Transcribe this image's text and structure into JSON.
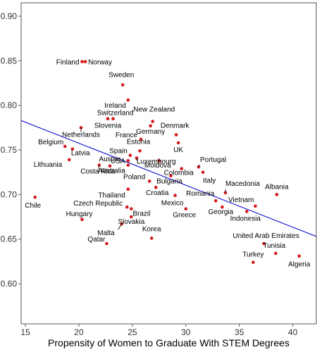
{
  "chart_data": {
    "type": "scatter",
    "title": "",
    "xlabel": "Propensity of Women to Graduate With STEM Degrees",
    "ylabel": "",
    "xlim": [
      14.6,
      42.2
    ],
    "ylim": [
      0.555,
      0.915
    ],
    "xticks": [
      15,
      20,
      25,
      30,
      35,
      40
    ],
    "yticks": [
      0.6,
      0.65,
      0.7,
      0.75,
      0.8,
      0.85,
      0.9
    ],
    "xtick_labels": [
      "15",
      "20",
      "25",
      "30",
      "35",
      "40"
    ],
    "ytick_labels": [
      "0.60",
      "0.65",
      "0.70",
      "0.75",
      "0.80",
      "0.85",
      "0.90"
    ],
    "grid": false,
    "point_color": "#d7191c",
    "trend_color": "#1f1fd6",
    "trend_line": {
      "x": [
        14.6,
        42.2
      ],
      "y": [
        0.783,
        0.653
      ]
    },
    "points": [
      {
        "name": "Finland",
        "x": 20.3,
        "y": 0.849
      },
      {
        "name": "Norway",
        "x": 20.6,
        "y": 0.849
      },
      {
        "name": "Sweden",
        "x": 24.1,
        "y": 0.823
      },
      {
        "name": "Ireland",
        "x": 24.6,
        "y": 0.806
      },
      {
        "name": "Switzerland",
        "x": 23.2,
        "y": 0.785
      },
      {
        "name": "Slovenia",
        "x": 22.7,
        "y": 0.785
      },
      {
        "name": "New Zealand",
        "x": 26.9,
        "y": 0.782
      },
      {
        "name": "Germany",
        "x": 26.7,
        "y": 0.777
      },
      {
        "name": "Netherlands",
        "x": 20.2,
        "y": 0.775
      },
      {
        "name": "Denmark",
        "x": 29.1,
        "y": 0.767
      },
      {
        "name": "France",
        "x": 25.8,
        "y": 0.762
      },
      {
        "name": "UK",
        "x": 29.3,
        "y": 0.758
      },
      {
        "name": "Belgium",
        "x": 18.7,
        "y": 0.754
      },
      {
        "name": "Latvia",
        "x": 19.4,
        "y": 0.751
      },
      {
        "name": "Estonia",
        "x": 25.7,
        "y": 0.749
      },
      {
        "name": "Spain",
        "x": 24.8,
        "y": 0.744
      },
      {
        "name": "Luxembourg",
        "x": 25.4,
        "y": 0.741
      },
      {
        "name": "USA",
        "x": 24.6,
        "y": 0.738
      },
      {
        "name": "Lithuania",
        "x": 19.1,
        "y": 0.739
      },
      {
        "name": "Austria",
        "x": 22.9,
        "y": 0.732
      },
      {
        "name": "Moldova",
        "x": 27.5,
        "y": 0.738
      },
      {
        "name": "Portugal",
        "x": 31.2,
        "y": 0.731
      },
      {
        "name": "Costa Rica",
        "x": 21.9,
        "y": 0.733
      },
      {
        "name": "Australia",
        "x": 24.6,
        "y": 0.733
      },
      {
        "name": "Colombia",
        "x": 29.6,
        "y": 0.729
      },
      {
        "name": "Italy",
        "x": 31.6,
        "y": 0.725
      },
      {
        "name": "Poland",
        "x": 26.6,
        "y": 0.715
      },
      {
        "name": "Bulgaria",
        "x": 28.6,
        "y": 0.721
      },
      {
        "name": "Thailand",
        "x": 24.6,
        "y": 0.706
      },
      {
        "name": "Croatia",
        "x": 27.2,
        "y": 0.708
      },
      {
        "name": "Macedonia",
        "x": 33.7,
        "y": 0.702
      },
      {
        "name": "Albania",
        "x": 38.5,
        "y": 0.7
      },
      {
        "name": "Chile",
        "x": 15.9,
        "y": 0.697
      },
      {
        "name": "Mexico",
        "x": 29.0,
        "y": 0.699
      },
      {
        "name": "Romania",
        "x": 32.8,
        "y": 0.693
      },
      {
        "name": "Czech Republic",
        "x": 24.5,
        "y": 0.686
      },
      {
        "name": "Vietnam",
        "x": 36.5,
        "y": 0.687
      },
      {
        "name": "Brazil",
        "x": 24.9,
        "y": 0.684
      },
      {
        "name": "Greece",
        "x": 30.0,
        "y": 0.684
      },
      {
        "name": "Georgia",
        "x": 33.4,
        "y": 0.686
      },
      {
        "name": "Indonesia",
        "x": 35.7,
        "y": 0.681
      },
      {
        "name": "Hungary",
        "x": 20.3,
        "y": 0.672
      },
      {
        "name": "Slovakia",
        "x": 24.9,
        "y": 0.675
      },
      {
        "name": "Malta",
        "x": 24.0,
        "y": 0.667
      },
      {
        "name": "Korea",
        "x": 26.8,
        "y": 0.651
      },
      {
        "name": "Qatar",
        "x": 22.6,
        "y": 0.645
      },
      {
        "name": "United Arab Emirates",
        "x": 37.3,
        "y": 0.645
      },
      {
        "name": "Tunisia",
        "x": 38.4,
        "y": 0.634
      },
      {
        "name": "Turkey",
        "x": 36.3,
        "y": 0.624
      },
      {
        "name": "Algeria",
        "x": 40.6,
        "y": 0.631
      }
    ]
  }
}
